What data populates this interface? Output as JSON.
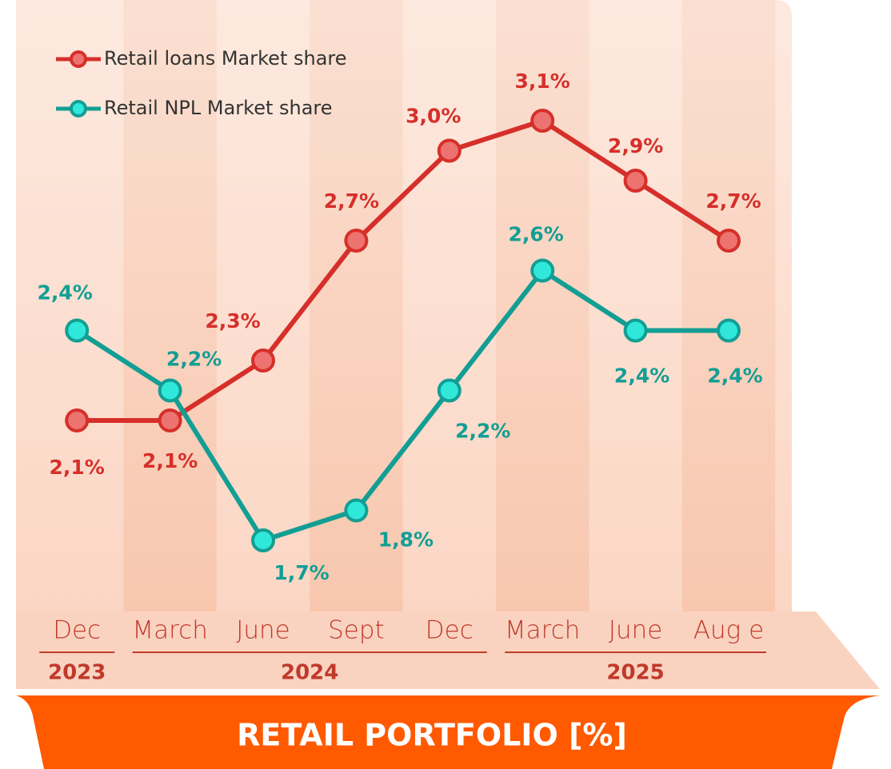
{
  "chart_data": {
    "type": "line",
    "title": "RETAIL PORTFOLIO [%]",
    "categories": [
      "Dec",
      "March",
      "June",
      "Sept",
      "Dec",
      "March",
      "June",
      "Aug e"
    ],
    "x_groups": [
      {
        "label": "2023",
        "count": 1
      },
      {
        "label": "2024",
        "count": 4
      },
      {
        "label": "2025",
        "count": 3
      }
    ],
    "series": [
      {
        "name": "Retail loans Market share",
        "color": "#d62f2a",
        "values": [
          2.1,
          2.1,
          2.3,
          2.7,
          3.0,
          3.1,
          2.9,
          2.7
        ],
        "value_labels": [
          "2,1%",
          "2,1%",
          "2,3%",
          "2,7%",
          "3,0%",
          "3,1%",
          "2,9%",
          "2,7%"
        ]
      },
      {
        "name": "Retail NPL Market share",
        "color": "#139e94",
        "values": [
          2.4,
          2.2,
          1.7,
          1.8,
          2.2,
          2.6,
          2.4,
          2.4
        ],
        "value_labels": [
          "2,4%",
          "2,2%",
          "1,7%",
          "1,8%",
          "2,2%",
          "2,6%",
          "2,4%",
          "2,4%"
        ]
      }
    ],
    "ylim": [
      1.5,
      3.3
    ]
  }
}
